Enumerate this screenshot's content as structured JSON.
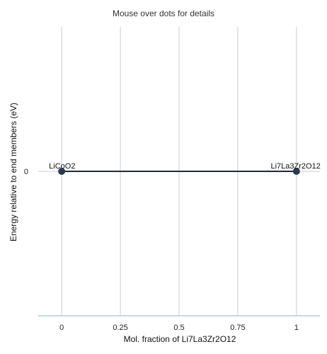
{
  "hint": "Mouse over dots for details",
  "colors": {
    "grid": "#cccccc",
    "axis": "#b8c8dc",
    "line": "#1d2a38",
    "dot": "#2a3a4e"
  },
  "chart_data": {
    "type": "line",
    "title": "",
    "xlabel": "Mol. fraction of Li7La3Zr2O12",
    "ylabel": "Energy relative to end members (eV)",
    "xlim": [
      -0.1,
      1.1
    ],
    "xticks": [
      {
        "value": 0,
        "label": "0"
      },
      {
        "value": 0.25,
        "label": "0.25"
      },
      {
        "value": 0.5,
        "label": "0.5"
      },
      {
        "value": 0.75,
        "label": "0.75"
      },
      {
        "value": 1,
        "label": "1"
      }
    ],
    "yticks": [
      {
        "value": 0,
        "label": "0"
      }
    ],
    "grid": true,
    "series": [
      {
        "points": [
          {
            "x": 0,
            "y": 0,
            "label": "LiCoO2"
          },
          {
            "x": 1,
            "y": 0,
            "label": "Li7La3Zr2O12"
          }
        ]
      }
    ]
  }
}
